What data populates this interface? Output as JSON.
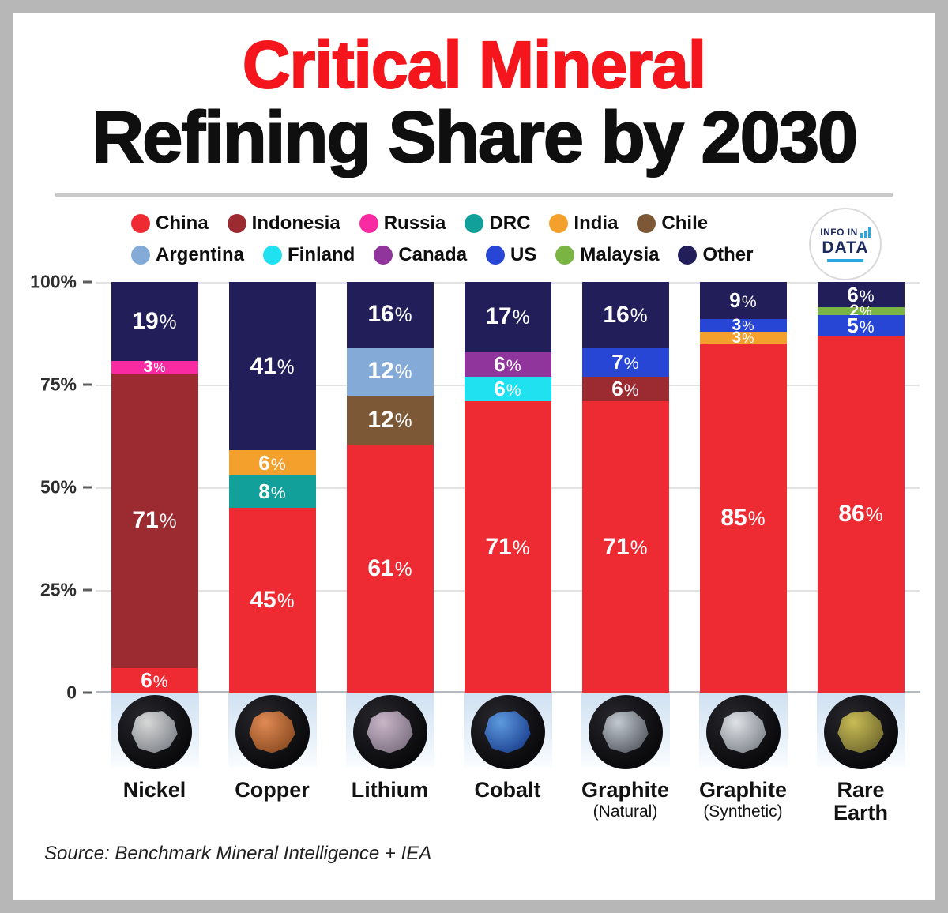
{
  "title": {
    "line1": "Critical Mineral",
    "line2": "Refining Share by 2030"
  },
  "legend": {
    "row1": [
      "China",
      "Indonesia",
      "Russia",
      "DRC",
      "India",
      "Chile"
    ],
    "row2": [
      "Argentina",
      "Finland",
      "Canada",
      "US",
      "Malaysia",
      "Other"
    ]
  },
  "series_colors": {
    "China": "#ee2b33",
    "Indonesia": "#9c2b31",
    "Russia": "#f92aa2",
    "DRC": "#12a09a",
    "India": "#f4a02c",
    "Chile": "#7c5836",
    "Argentina": "#84abd8",
    "Finland": "#1fe1f0",
    "Canada": "#90359c",
    "US": "#2746d6",
    "Malaysia": "#7ab544",
    "Other": "#221e5a"
  },
  "logo": {
    "line1": "INFO IN",
    "line2": "DATA"
  },
  "source": "Source: Benchmark Mineral Intelligence + IEA",
  "chart_data": {
    "type": "bar",
    "stacked": true,
    "title": "Critical Mineral Refining Share by 2030",
    "unit": "%",
    "xlabel": "",
    "ylabel": "",
    "ylim": [
      0,
      100
    ],
    "yticks": [
      "100%",
      "75%",
      "50%",
      "25%",
      "0"
    ],
    "grid": true,
    "legend_position": "top",
    "categories": [
      {
        "name": "Nickel",
        "lines": [
          "Nickel"
        ],
        "sub": "",
        "rock": [
          "#d8d8d8",
          "#7e8288"
        ]
      },
      {
        "name": "Copper",
        "lines": [
          "Copper"
        ],
        "sub": "",
        "rock": [
          "#e08a54",
          "#8a4a20"
        ]
      },
      {
        "name": "Lithium",
        "lines": [
          "Lithium"
        ],
        "sub": "",
        "rock": [
          "#c9b6c7",
          "#7b6f80"
        ]
      },
      {
        "name": "Cobalt",
        "lines": [
          "Cobalt"
        ],
        "sub": "",
        "rock": [
          "#5d9ade",
          "#1b3f8f"
        ]
      },
      {
        "name": "Graphite (Natural)",
        "lines": [
          "Graphite"
        ],
        "sub": "(Natural)",
        "rock": [
          "#c3c9d1",
          "#565b63"
        ]
      },
      {
        "name": "Graphite (Synthetic)",
        "lines": [
          "Graphite"
        ],
        "sub": "(Synthetic)",
        "rock": [
          "#dfe2e6",
          "#7f848c"
        ]
      },
      {
        "name": "Rare Earth",
        "lines": [
          "Rare",
          "Earth"
        ],
        "sub": "",
        "rock": [
          "#c8bb55",
          "#6f682d"
        ]
      }
    ],
    "bars": [
      {
        "category": "Nickel",
        "segments": [
          {
            "name": "China",
            "value": 6
          },
          {
            "name": "Indonesia",
            "value": 71
          },
          {
            "name": "Russia",
            "value": 3
          },
          {
            "name": "Other",
            "value": 19
          }
        ]
      },
      {
        "category": "Copper",
        "segments": [
          {
            "name": "China",
            "value": 45
          },
          {
            "name": "DRC",
            "value": 8
          },
          {
            "name": "India",
            "value": 6
          },
          {
            "name": "Other",
            "value": 41
          }
        ]
      },
      {
        "category": "Lithium",
        "segments": [
          {
            "name": "China",
            "value": 61
          },
          {
            "name": "Chile",
            "value": 12
          },
          {
            "name": "Argentina",
            "value": 12
          },
          {
            "name": "Other",
            "value": 16
          }
        ]
      },
      {
        "category": "Cobalt",
        "segments": [
          {
            "name": "China",
            "value": 71
          },
          {
            "name": "Finland",
            "value": 6
          },
          {
            "name": "Canada",
            "value": 6
          },
          {
            "name": "Other",
            "value": 17
          }
        ]
      },
      {
        "category": "Graphite (Natural)",
        "segments": [
          {
            "name": "China",
            "value": 71
          },
          {
            "name": "Indonesia",
            "value": 6
          },
          {
            "name": "US",
            "value": 7
          },
          {
            "name": "Other",
            "value": 16
          }
        ]
      },
      {
        "category": "Graphite (Synthetic)",
        "segments": [
          {
            "name": "China",
            "value": 85
          },
          {
            "name": "India",
            "value": 3
          },
          {
            "name": "US",
            "value": 3
          },
          {
            "name": "Other",
            "value": 9
          }
        ]
      },
      {
        "category": "Rare Earth",
        "segments": [
          {
            "name": "China",
            "value": 86
          },
          {
            "name": "US",
            "value": 5
          },
          {
            "name": "Malaysia",
            "value": 2
          },
          {
            "name": "Other",
            "value": 6
          }
        ]
      }
    ]
  }
}
